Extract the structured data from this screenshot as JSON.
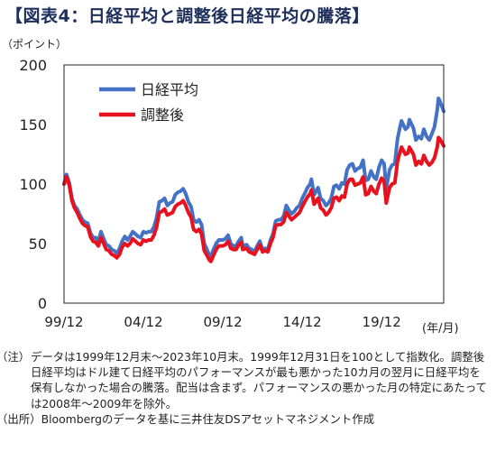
{
  "title": "【図表4：日経平均と調整後日経平均の騰落】",
  "chart_data": {
    "type": "line",
    "y_unit_label": "（ポイント）",
    "x_unit_label": "(年/月)",
    "ylim": [
      0,
      200
    ],
    "yticks": [
      "0",
      "50",
      "100",
      "150",
      "200"
    ],
    "xticks": [
      {
        "label": "99/12",
        "t": 1999.92
      },
      {
        "label": "04/12",
        "t": 2004.92
      },
      {
        "label": "09/12",
        "t": 2009.92
      },
      {
        "label": "14/12",
        "t": 2014.92
      },
      {
        "label": "19/12",
        "t": 2019.92
      }
    ],
    "xlim": [
      1999.92,
      2023.83
    ],
    "grid": false,
    "legend_position": "top-left",
    "series": [
      {
        "name": "日経平均",
        "color": "#4472c4",
        "points": [
          [
            1999.92,
            100
          ],
          [
            2000.08,
            108
          ],
          [
            2000.25,
            101
          ],
          [
            2000.42,
            88
          ],
          [
            2000.58,
            82
          ],
          [
            2000.75,
            79
          ],
          [
            2000.92,
            74
          ],
          [
            2001.08,
            70
          ],
          [
            2001.25,
            68
          ],
          [
            2001.42,
            67
          ],
          [
            2001.58,
            59
          ],
          [
            2001.75,
            55
          ],
          [
            2001.92,
            55
          ],
          [
            2002.08,
            52
          ],
          [
            2002.25,
            60
          ],
          [
            2002.42,
            54
          ],
          [
            2002.58,
            49
          ],
          [
            2002.75,
            48
          ],
          [
            2002.92,
            45
          ],
          [
            2003.08,
            44
          ],
          [
            2003.25,
            42
          ],
          [
            2003.42,
            46
          ],
          [
            2003.58,
            52
          ],
          [
            2003.75,
            56
          ],
          [
            2003.92,
            53
          ],
          [
            2004.08,
            56
          ],
          [
            2004.25,
            60
          ],
          [
            2004.42,
            58
          ],
          [
            2004.58,
            56
          ],
          [
            2004.75,
            55
          ],
          [
            2004.92,
            60
          ],
          [
            2005.08,
            59
          ],
          [
            2005.25,
            60
          ],
          [
            2005.42,
            60
          ],
          [
            2005.58,
            64
          ],
          [
            2005.75,
            72
          ],
          [
            2005.92,
            85
          ],
          [
            2006.08,
            86
          ],
          [
            2006.25,
            88
          ],
          [
            2006.42,
            82
          ],
          [
            2006.58,
            84
          ],
          [
            2006.75,
            85
          ],
          [
            2006.92,
            91
          ],
          [
            2007.08,
            93
          ],
          [
            2007.25,
            94
          ],
          [
            2007.42,
            96
          ],
          [
            2007.58,
            92
          ],
          [
            2007.75,
            85
          ],
          [
            2007.92,
            81
          ],
          [
            2008.08,
            70
          ],
          [
            2008.25,
            68
          ],
          [
            2008.42,
            70
          ],
          [
            2008.58,
            66
          ],
          [
            2008.75,
            50
          ],
          [
            2008.92,
            45
          ],
          [
            2009.08,
            40
          ],
          [
            2009.17,
            39
          ],
          [
            2009.33,
            45
          ],
          [
            2009.5,
            50
          ],
          [
            2009.67,
            53
          ],
          [
            2009.92,
            53
          ],
          [
            2010.08,
            54
          ],
          [
            2010.25,
            57
          ],
          [
            2010.42,
            50
          ],
          [
            2010.58,
            48
          ],
          [
            2010.75,
            48
          ],
          [
            2010.92,
            52
          ],
          [
            2011.08,
            55
          ],
          [
            2011.17,
            48
          ],
          [
            2011.42,
            49
          ],
          [
            2011.58,
            46
          ],
          [
            2011.75,
            45
          ],
          [
            2011.92,
            43
          ],
          [
            2012.08,
            48
          ],
          [
            2012.25,
            52
          ],
          [
            2012.42,
            45
          ],
          [
            2012.58,
            46
          ],
          [
            2012.75,
            45
          ],
          [
            2012.92,
            53
          ],
          [
            2013.08,
            58
          ],
          [
            2013.25,
            69
          ],
          [
            2013.42,
            70
          ],
          [
            2013.58,
            70
          ],
          [
            2013.75,
            73
          ],
          [
            2013.92,
            82
          ],
          [
            2014.08,
            78
          ],
          [
            2014.25,
            75
          ],
          [
            2014.42,
            77
          ],
          [
            2014.58,
            80
          ],
          [
            2014.75,
            82
          ],
          [
            2014.92,
            88
          ],
          [
            2015.08,
            92
          ],
          [
            2015.25,
            97
          ],
          [
            2015.42,
            100
          ],
          [
            2015.5,
            104
          ],
          [
            2015.67,
            91
          ],
          [
            2015.92,
            97
          ],
          [
            2016.08,
            88
          ],
          [
            2016.25,
            86
          ],
          [
            2016.42,
            82
          ],
          [
            2016.58,
            84
          ],
          [
            2016.75,
            88
          ],
          [
            2016.92,
            98
          ],
          [
            2017.08,
            99
          ],
          [
            2017.25,
            96
          ],
          [
            2017.42,
            101
          ],
          [
            2017.58,
            100
          ],
          [
            2017.75,
            112
          ],
          [
            2017.92,
            116
          ],
          [
            2018.08,
            117
          ],
          [
            2018.25,
            111
          ],
          [
            2018.42,
            113
          ],
          [
            2018.58,
            114
          ],
          [
            2018.75,
            120
          ],
          [
            2018.92,
            103
          ],
          [
            2019.08,
            104
          ],
          [
            2019.25,
            111
          ],
          [
            2019.42,
            106
          ],
          [
            2019.58,
            104
          ],
          [
            2019.75,
            114
          ],
          [
            2019.92,
            120
          ],
          [
            2020.08,
            117
          ],
          [
            2020.21,
            96
          ],
          [
            2020.42,
            112
          ],
          [
            2020.58,
            116
          ],
          [
            2020.75,
            117
          ],
          [
            2020.92,
            138
          ],
          [
            2021.08,
            148
          ],
          [
            2021.17,
            153
          ],
          [
            2021.42,
            146
          ],
          [
            2021.58,
            148
          ],
          [
            2021.67,
            154
          ],
          [
            2021.92,
            147
          ],
          [
            2022.08,
            137
          ],
          [
            2022.25,
            140
          ],
          [
            2022.42,
            138
          ],
          [
            2022.58,
            146
          ],
          [
            2022.75,
            140
          ],
          [
            2022.92,
            137
          ],
          [
            2023.08,
            142
          ],
          [
            2023.25,
            148
          ],
          [
            2023.42,
            162
          ],
          [
            2023.5,
            172
          ],
          [
            2023.58,
            170
          ],
          [
            2023.75,
            164
          ],
          [
            2023.83,
            161
          ]
        ]
      },
      {
        "name": "調整後",
        "color": "#e8111d",
        "points": [
          [
            1999.92,
            100
          ],
          [
            2000.08,
            106
          ],
          [
            2000.25,
            99
          ],
          [
            2000.42,
            86
          ],
          [
            2000.58,
            80
          ],
          [
            2000.75,
            76
          ],
          [
            2000.92,
            71
          ],
          [
            2001.08,
            67
          ],
          [
            2001.25,
            65
          ],
          [
            2001.42,
            64
          ],
          [
            2001.58,
            56
          ],
          [
            2001.75,
            52
          ],
          [
            2001.92,
            51
          ],
          [
            2002.08,
            48
          ],
          [
            2002.25,
            55
          ],
          [
            2002.42,
            50
          ],
          [
            2002.58,
            45
          ],
          [
            2002.75,
            44
          ],
          [
            2002.92,
            41
          ],
          [
            2003.08,
            40
          ],
          [
            2003.25,
            38
          ],
          [
            2003.42,
            41
          ],
          [
            2003.58,
            47
          ],
          [
            2003.75,
            50
          ],
          [
            2003.92,
            48
          ],
          [
            2004.08,
            50
          ],
          [
            2004.25,
            54
          ],
          [
            2004.42,
            52
          ],
          [
            2004.58,
            50
          ],
          [
            2004.75,
            49
          ],
          [
            2004.92,
            53
          ],
          [
            2005.08,
            52
          ],
          [
            2005.25,
            53
          ],
          [
            2005.42,
            53
          ],
          [
            2005.58,
            57
          ],
          [
            2005.75,
            64
          ],
          [
            2005.92,
            76
          ],
          [
            2006.08,
            77
          ],
          [
            2006.25,
            79
          ],
          [
            2006.42,
            74
          ],
          [
            2006.58,
            75
          ],
          [
            2006.75,
            76
          ],
          [
            2006.92,
            81
          ],
          [
            2007.08,
            83
          ],
          [
            2007.25,
            84
          ],
          [
            2007.42,
            86
          ],
          [
            2007.58,
            82
          ],
          [
            2007.75,
            76
          ],
          [
            2007.92,
            72
          ],
          [
            2008.08,
            62
          ],
          [
            2008.25,
            60
          ],
          [
            2008.42,
            62
          ],
          [
            2008.58,
            58
          ],
          [
            2008.75,
            44
          ],
          [
            2008.92,
            40
          ],
          [
            2009.08,
            36
          ],
          [
            2009.17,
            35
          ],
          [
            2009.33,
            40
          ],
          [
            2009.5,
            45
          ],
          [
            2009.67,
            48
          ],
          [
            2009.92,
            48
          ],
          [
            2010.08,
            49
          ],
          [
            2010.25,
            52
          ],
          [
            2010.42,
            46
          ],
          [
            2010.58,
            45
          ],
          [
            2010.75,
            45
          ],
          [
            2010.92,
            49
          ],
          [
            2011.08,
            51
          ],
          [
            2011.17,
            45
          ],
          [
            2011.42,
            46
          ],
          [
            2011.58,
            43
          ],
          [
            2011.75,
            42
          ],
          [
            2011.92,
            41
          ],
          [
            2012.08,
            45
          ],
          [
            2012.25,
            49
          ],
          [
            2012.42,
            43
          ],
          [
            2012.58,
            44
          ],
          [
            2012.75,
            43
          ],
          [
            2012.92,
            50
          ],
          [
            2013.08,
            55
          ],
          [
            2013.25,
            65
          ],
          [
            2013.42,
            66
          ],
          [
            2013.58,
            66
          ],
          [
            2013.75,
            68
          ],
          [
            2013.92,
            76
          ],
          [
            2014.08,
            73
          ],
          [
            2014.25,
            70
          ],
          [
            2014.42,
            72
          ],
          [
            2014.58,
            74
          ],
          [
            2014.75,
            76
          ],
          [
            2014.92,
            81
          ],
          [
            2015.08,
            85
          ],
          [
            2015.25,
            89
          ],
          [
            2015.42,
            92
          ],
          [
            2015.5,
            95
          ],
          [
            2015.67,
            83
          ],
          [
            2015.92,
            88
          ],
          [
            2016.08,
            80
          ],
          [
            2016.25,
            78
          ],
          [
            2016.42,
            74
          ],
          [
            2016.58,
            76
          ],
          [
            2016.75,
            80
          ],
          [
            2016.92,
            88
          ],
          [
            2017.08,
            89
          ],
          [
            2017.25,
            86
          ],
          [
            2017.42,
            90
          ],
          [
            2017.58,
            89
          ],
          [
            2017.75,
            100
          ],
          [
            2017.92,
            104
          ],
          [
            2018.08,
            104
          ],
          [
            2018.25,
            99
          ],
          [
            2018.42,
            100
          ],
          [
            2018.58,
            101
          ],
          [
            2018.75,
            106
          ],
          [
            2018.92,
            91
          ],
          [
            2019.08,
            92
          ],
          [
            2019.25,
            98
          ],
          [
            2019.42,
            94
          ],
          [
            2019.58,
            92
          ],
          [
            2019.75,
            100
          ],
          [
            2019.92,
            105
          ],
          [
            2020.08,
            102
          ],
          [
            2020.21,
            84
          ],
          [
            2020.42,
            97
          ],
          [
            2020.58,
            100
          ],
          [
            2020.75,
            101
          ],
          [
            2020.92,
            119
          ],
          [
            2021.08,
            127
          ],
          [
            2021.17,
            131
          ],
          [
            2021.42,
            125
          ],
          [
            2021.58,
            126
          ],
          [
            2021.67,
            131
          ],
          [
            2021.92,
            125
          ],
          [
            2022.08,
            116
          ],
          [
            2022.25,
            119
          ],
          [
            2022.42,
            117
          ],
          [
            2022.58,
            124
          ],
          [
            2022.75,
            119
          ],
          [
            2022.92,
            116
          ],
          [
            2023.08,
            118
          ],
          [
            2023.25,
            122
          ],
          [
            2023.42,
            131
          ],
          [
            2023.5,
            139
          ],
          [
            2023.58,
            138
          ],
          [
            2023.75,
            134
          ],
          [
            2023.83,
            132
          ]
        ]
      }
    ]
  },
  "notes": {
    "note_label": "（注）",
    "note_text": "データは1999年12月末～2023年10月末。1999年12月31日を100として指数化。調整後日経平均はドル建て日経平均のパフォーマンスが最も悪かった10カ月の翌月に日経平均を保有しなかった場合の騰落。配当は含まず。パフォーマンスの悪かった月の特定にあたっては2008年～2009年を除外。",
    "source_label": "（出所）",
    "source_text": "Bloombergのデータを基に三井住友DSアセットマネジメント作成"
  }
}
